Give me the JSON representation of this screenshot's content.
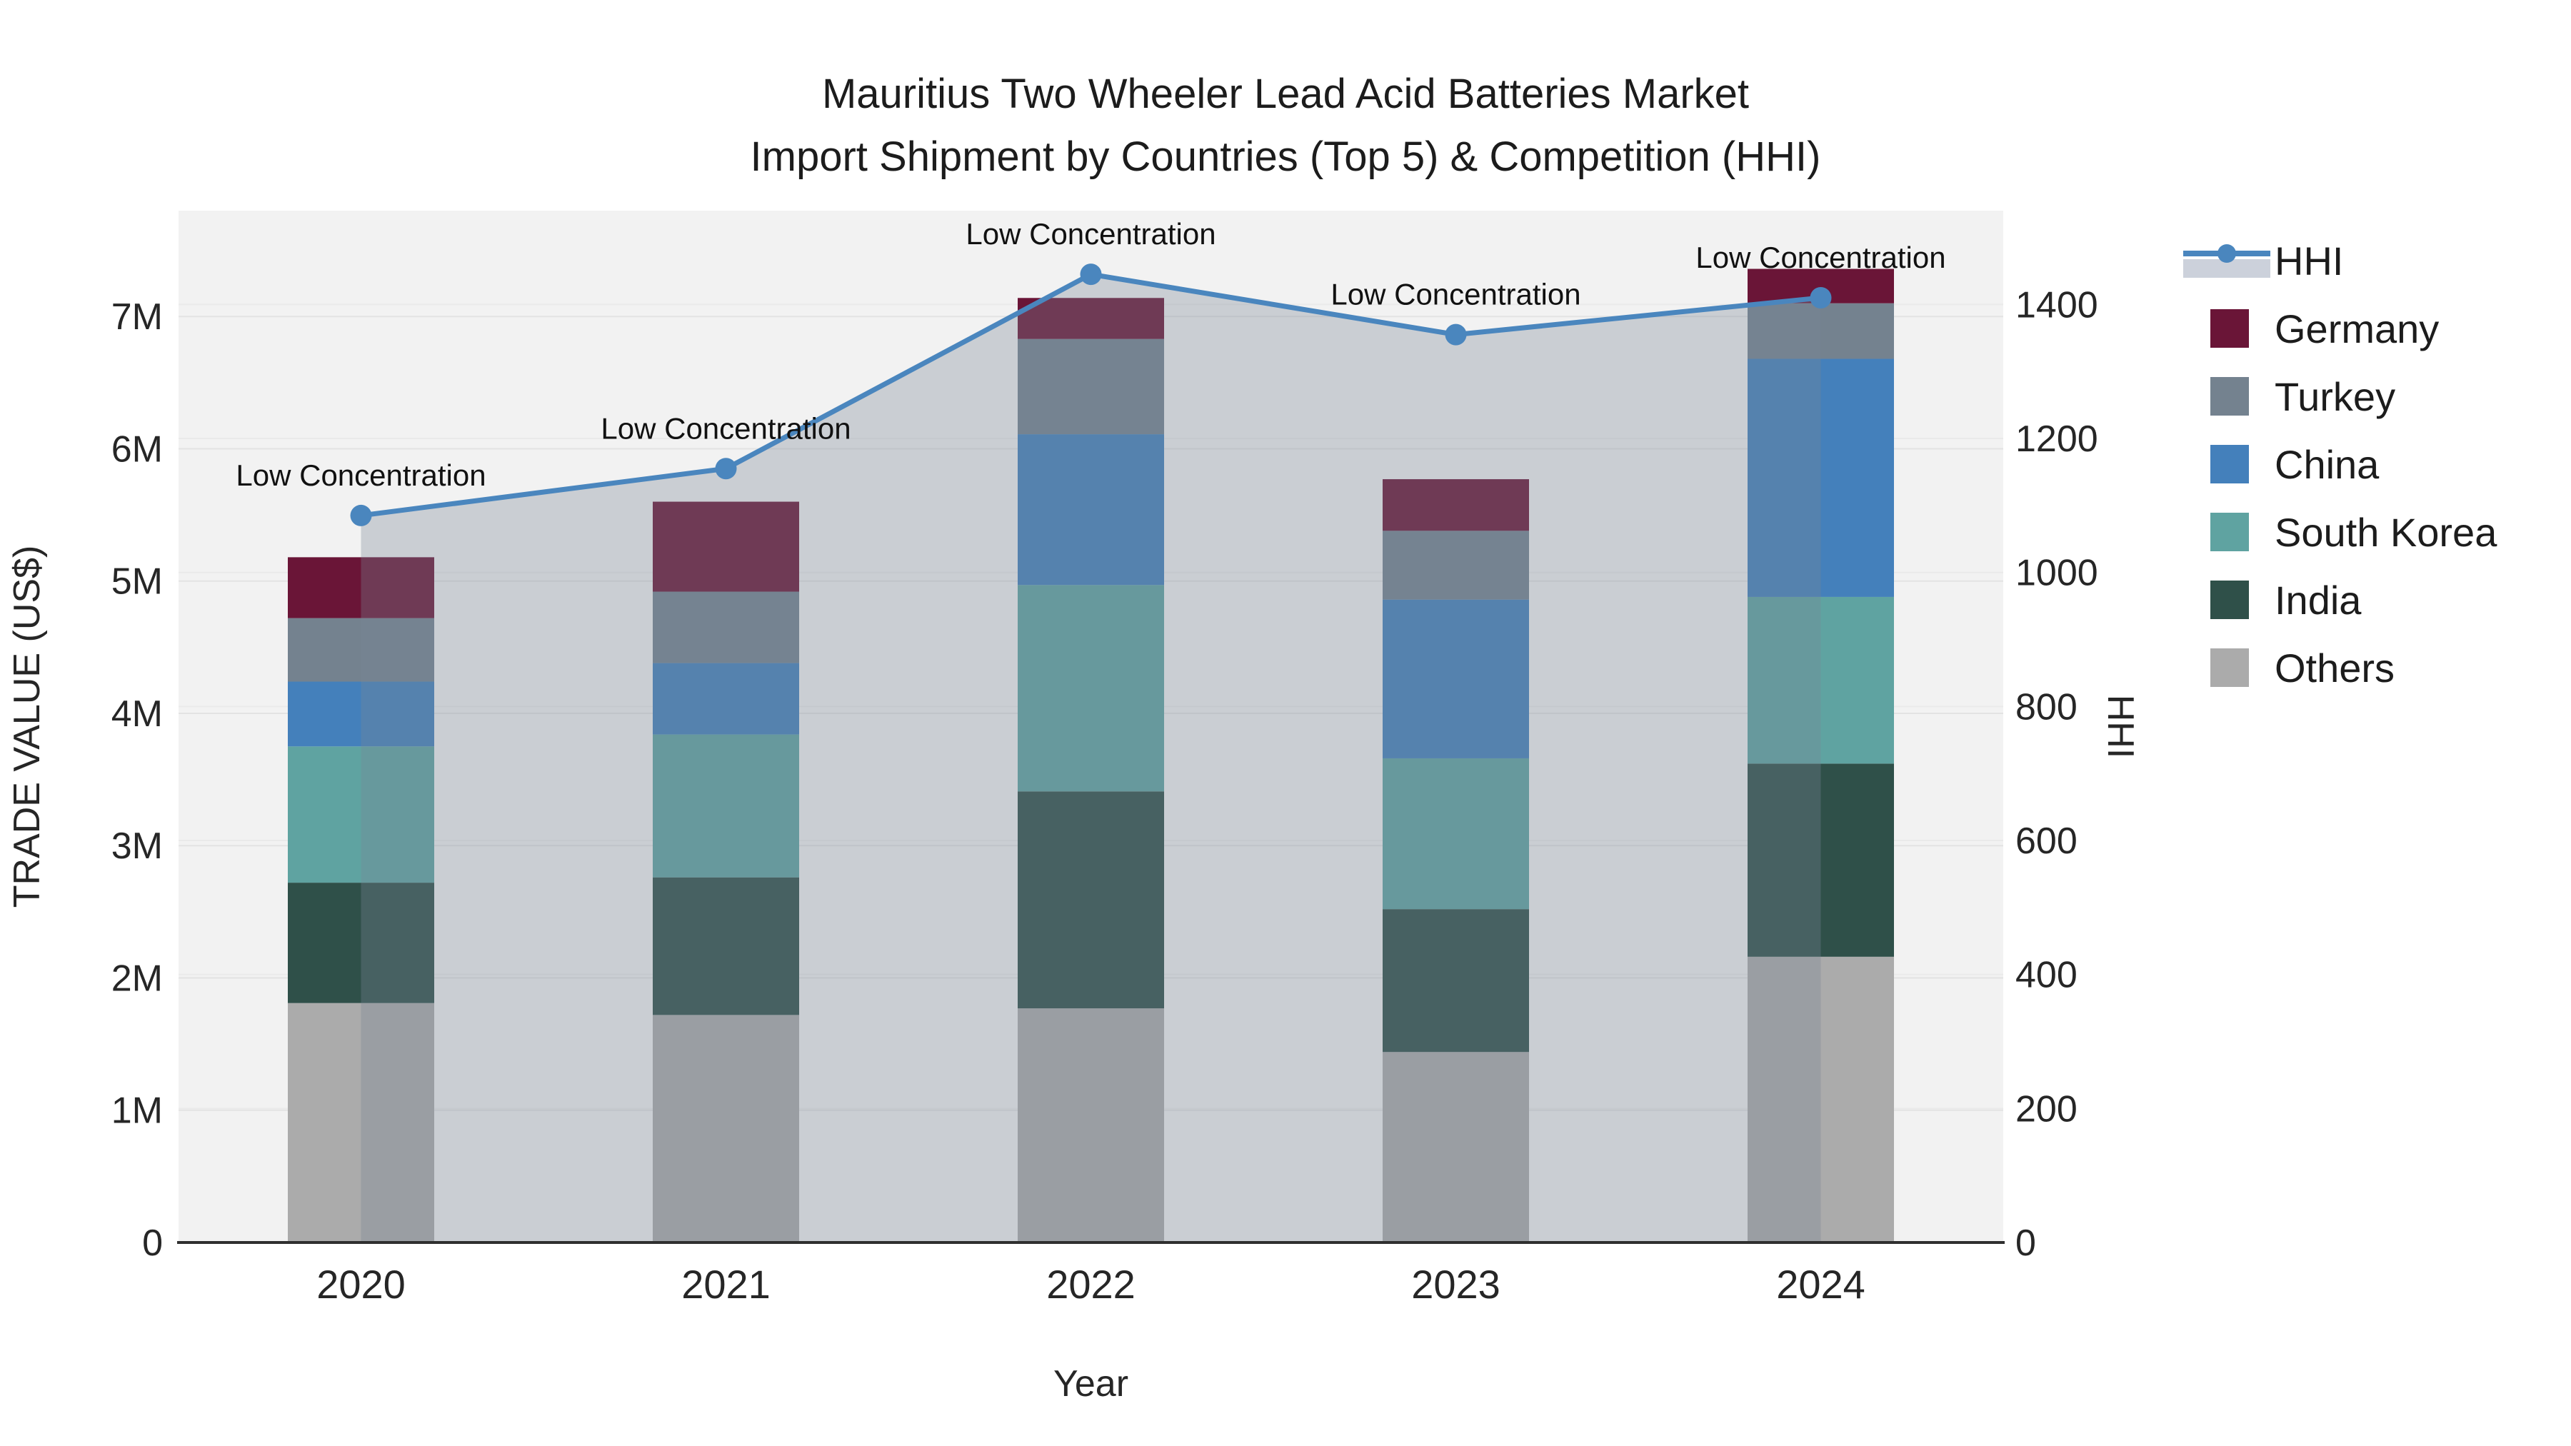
{
  "title": {
    "line1": "Mauritius Two Wheeler Lead Acid Batteries Market",
    "line2": "Import Shipment by Countries (Top 5) & Competition (HHI)"
  },
  "axes": {
    "x": {
      "title": "Year",
      "categories": [
        "2020",
        "2021",
        "2022",
        "2023",
        "2024"
      ]
    },
    "y_left": {
      "title": "TRADE VALUE (US$)",
      "tick_labels": [
        "0",
        "1M",
        "2M",
        "3M",
        "4M",
        "5M",
        "6M",
        "7M"
      ],
      "tick_values": [
        0,
        1,
        2,
        3,
        4,
        5,
        6,
        7
      ],
      "range_max": 7.8
    },
    "y_right": {
      "title": "HHI",
      "tick_labels": [
        "0",
        "200",
        "400",
        "600",
        "800",
        "1000",
        "1200",
        "1400"
      ],
      "tick_values": [
        0,
        200,
        400,
        600,
        800,
        1000,
        1200,
        1400
      ],
      "range_max": 1540
    }
  },
  "chart_data": {
    "type": "bar+line",
    "unit": "millions USD (left axis), HHI index (right axis)",
    "categories": [
      "2020",
      "2021",
      "2022",
      "2023",
      "2024"
    ],
    "stack_order_note": "series listed bottom-to-top of the stacked bars",
    "series": [
      {
        "name": "Others",
        "color": "#ABABAB",
        "values": [
          1.81,
          1.72,
          1.77,
          1.44,
          2.16
        ]
      },
      {
        "name": "India",
        "color": "#2F5049",
        "values": [
          0.91,
          1.04,
          1.64,
          1.08,
          1.46
        ]
      },
      {
        "name": "South Korea",
        "color": "#5FA3A1",
        "values": [
          1.03,
          1.08,
          1.56,
          1.14,
          1.26
        ]
      },
      {
        "name": "China",
        "color": "#4480BB",
        "values": [
          0.49,
          0.54,
          1.14,
          1.2,
          1.8
        ]
      },
      {
        "name": "Turkey",
        "color": "#74828F",
        "values": [
          0.48,
          0.54,
          0.72,
          0.52,
          0.42
        ]
      },
      {
        "name": "Germany",
        "color": "#6A1537",
        "values": [
          0.46,
          0.68,
          0.31,
          0.39,
          0.26
        ]
      }
    ],
    "line_series": {
      "name": "HHI",
      "color": "#4A86BE",
      "area_fill": "rgba(120,134,149,0.33)",
      "values": [
        1085,
        1155,
        1445,
        1355,
        1410
      ]
    },
    "annotations": [
      {
        "text": "Low Concentration",
        "x": "2020",
        "y": 1085
      },
      {
        "text": "Low Concentration",
        "x": "2021",
        "y": 1155
      },
      {
        "text": "Low Concentration",
        "x": "2022",
        "y": 1445
      },
      {
        "text": "Low Concentration",
        "x": "2023",
        "y": 1355
      },
      {
        "text": "Low Concentration",
        "x": "2024",
        "y": 1410
      }
    ],
    "plot_background": "#F2F2F2",
    "gridline_color": "#E3E3E3",
    "axis_line_color": "#2F2F2F",
    "legend_position": "right"
  },
  "legend": {
    "items": [
      {
        "label": "HHI",
        "type": "line-marker",
        "color": "#4A86BE",
        "band_color": "#CCD1DB"
      },
      {
        "label": "Germany",
        "type": "swatch",
        "color": "#6A1537"
      },
      {
        "label": "Turkey",
        "type": "swatch",
        "color": "#74828F"
      },
      {
        "label": "China",
        "type": "swatch",
        "color": "#4480BB"
      },
      {
        "label": "South Korea",
        "type": "swatch",
        "color": "#5FA3A1"
      },
      {
        "label": "India",
        "type": "swatch",
        "color": "#2F5049"
      },
      {
        "label": "Others",
        "type": "swatch",
        "color": "#ABABAB"
      }
    ]
  }
}
